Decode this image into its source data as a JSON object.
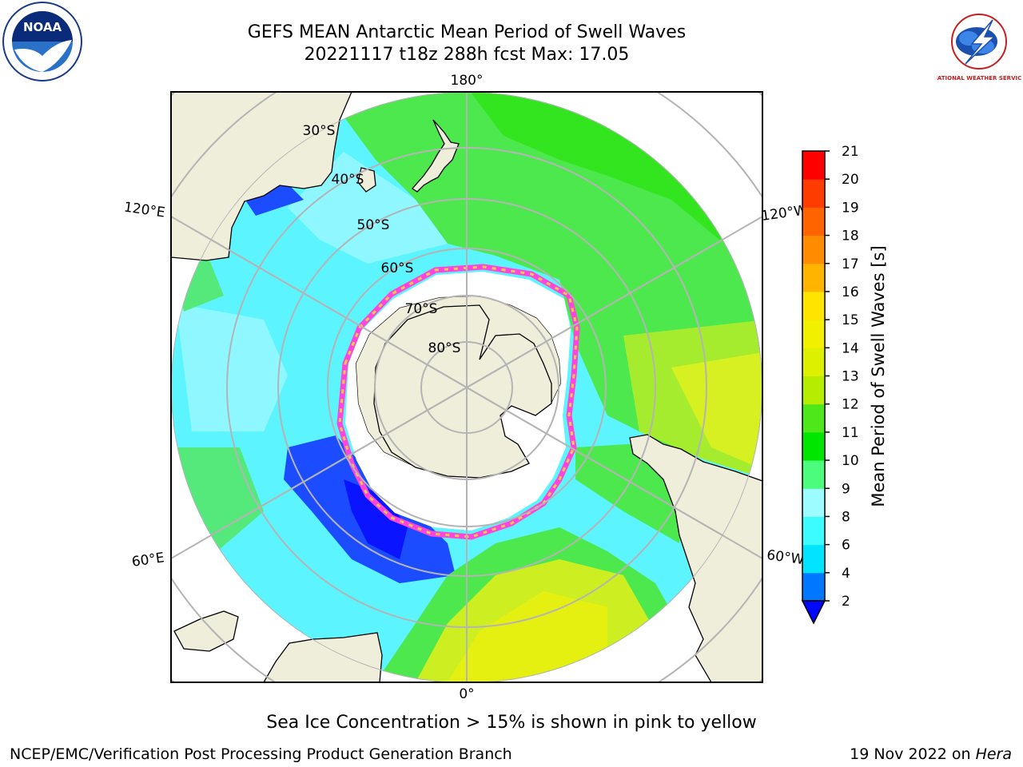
{
  "title": {
    "line1": "GEFS MEAN Antarctic Mean Period of Swell Waves",
    "line2": "20221117 t18z 288h fcst   Max: 17.05"
  },
  "logos": {
    "left": {
      "text": "NOAA"
    },
    "right": {
      "text": "NATIONAL WEATHER SERVICE"
    }
  },
  "map": {
    "projection": "south-polar-stereographic",
    "longitude_labels": {
      "top": "180°",
      "bottom": "0°",
      "left_upper": "120°E",
      "left_lower": "60°E",
      "right_upper": "120°W",
      "right_lower": "60°W"
    },
    "latitude_labels": [
      "30°S",
      "40°S",
      "50°S",
      "60°S",
      "70°S",
      "80°S"
    ],
    "colors": {
      "land": "#efeedb",
      "grid": "#b4b4b4",
      "ice": "#ffffff",
      "ice_edge_pink": "#ff44dd",
      "ice_edge_yellow": "#ffc94a"
    }
  },
  "colorbar": {
    "label": "Mean Period of Swell Waves [s]",
    "ticks": [
      "2",
      "4",
      "6",
      "8",
      "9",
      "10",
      "11",
      "12",
      "13",
      "14",
      "15",
      "16",
      "17",
      "18",
      "19",
      "20",
      "21"
    ],
    "colors": [
      "#0077ff",
      "#00e4ff",
      "#3cfcff",
      "#9cfcff",
      "#4cfc7c",
      "#00e600",
      "#4ee81a",
      "#b6ec00",
      "#dcf000",
      "#f0f000",
      "#ffe400",
      "#ffb400",
      "#ff8c00",
      "#ff6400",
      "#ff3c00",
      "#ff0000"
    ],
    "extend_color": "#0008ff"
  },
  "caption": "Sea Ice Concentration > 15% is shown in pink to yellow",
  "footer": {
    "left": "NCEP/EMC/Verification Post Processing Product Generation Branch",
    "right_date": "19 Nov 2022 on ",
    "right_host": "Hera"
  }
}
